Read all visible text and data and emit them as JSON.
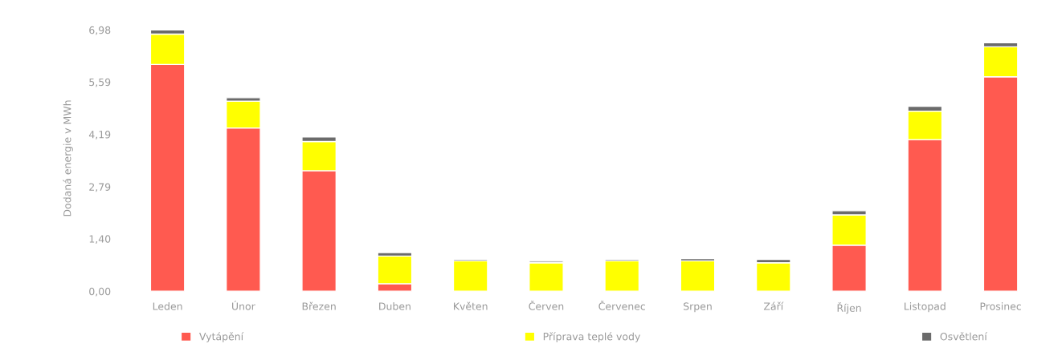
{
  "chart_data": {
    "type": "bar",
    "stacked": true,
    "ylabel": "Dodaná energie v MWh",
    "categories": [
      "Leden",
      "Únor",
      "Březen",
      "Duben",
      "Květen",
      "Červen",
      "Červenec",
      "Srpen",
      "Září",
      "Říjen",
      "Listopad",
      "Prosinec"
    ],
    "series": [
      {
        "name": "Vytápění",
        "color": "#ff5a50",
        "values": [
          6.06,
          4.36,
          3.22,
          0.2,
          0,
          0,
          0,
          0,
          0,
          1.23,
          4.05,
          5.73
        ]
      },
      {
        "name": "Příprava teplé vody",
        "color": "#ffff00",
        "values": [
          0.81,
          0.72,
          0.78,
          0.74,
          0.81,
          0.76,
          0.81,
          0.81,
          0.76,
          0.81,
          0.76,
          0.8
        ]
      },
      {
        "name": "Osvětlení",
        "color": "#6b6b6b",
        "values": [
          0.11,
          0.09,
          0.12,
          0.09,
          0.04,
          0.04,
          0.04,
          0.06,
          0.09,
          0.11,
          0.13,
          0.11
        ]
      }
    ],
    "ylim": [
      0,
      7.1
    ],
    "yticks": [
      {
        "value": 0,
        "label": "0,00"
      },
      {
        "value": 1.4,
        "label": "1,40"
      },
      {
        "value": 2.79,
        "label": "2,79"
      },
      {
        "value": 4.19,
        "label": "4,19"
      },
      {
        "value": 5.59,
        "label": "5,59"
      },
      {
        "value": 6.98,
        "label": "6,98"
      }
    ],
    "grid": false,
    "legend": "bottom"
  }
}
